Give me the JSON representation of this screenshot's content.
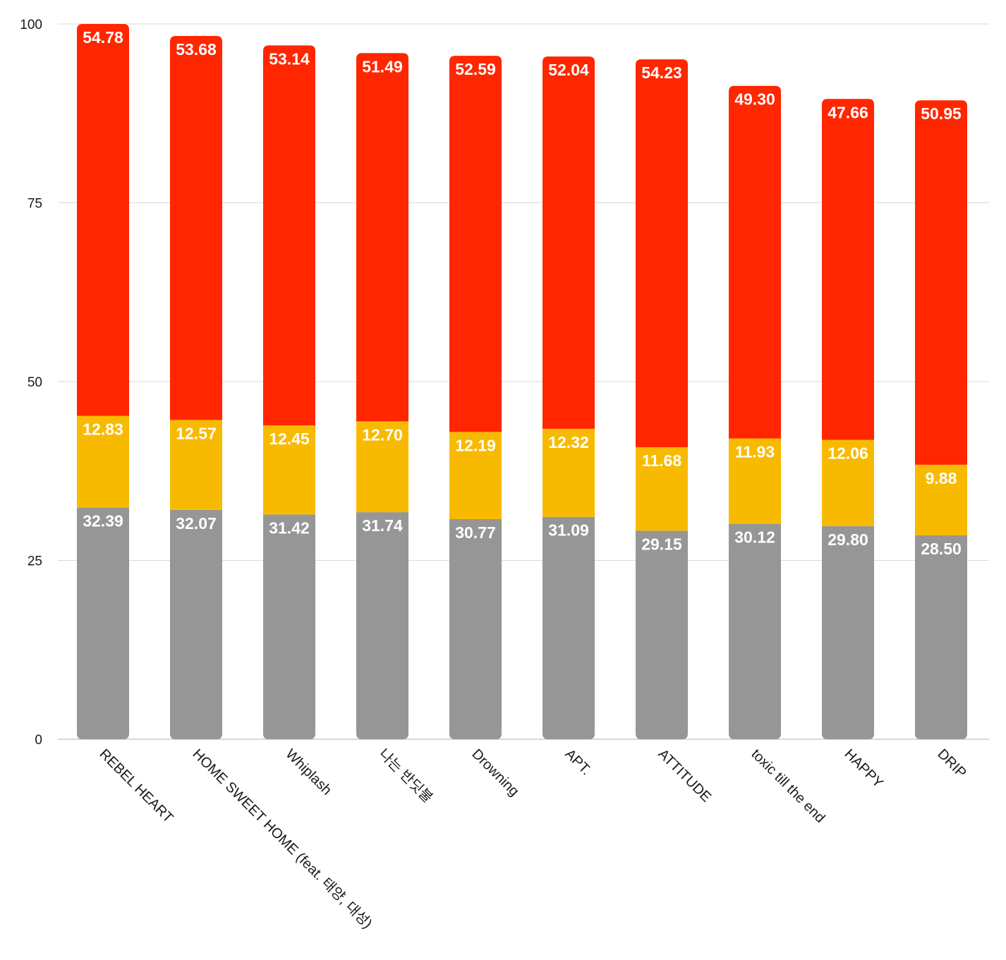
{
  "chart_data": {
    "type": "bar",
    "stacked": true,
    "title": "",
    "xlabel": "",
    "ylabel": "",
    "ylim": [
      0,
      100
    ],
    "yticks": [
      0,
      25,
      50,
      75,
      100
    ],
    "grid": true,
    "legend": "none",
    "categories": [
      "REBEL HEART",
      "HOME SWEET HOME (feat. 태양, 대성)",
      "Whiplash",
      "나는 반딧불",
      "Drowning",
      "APT.",
      "ATTITUDE",
      "toxic till the end",
      "HAPPY",
      "DRIP"
    ],
    "series": [
      {
        "color": "#969696",
        "values": [
          32.39,
          32.07,
          31.42,
          31.74,
          30.77,
          31.09,
          29.15,
          30.12,
          29.8,
          28.5
        ],
        "labels": [
          "32.39",
          "32.07",
          "31.42",
          "31.74",
          "30.77",
          "31.09",
          "29.15",
          "30.12",
          "29.80",
          "28.50"
        ]
      },
      {
        "color": "#f8ba00",
        "values": [
          12.83,
          12.57,
          12.45,
          12.7,
          12.19,
          12.32,
          11.68,
          11.93,
          12.06,
          9.88
        ],
        "labels": [
          "12.83",
          "12.57",
          "12.45",
          "12.70",
          "12.19",
          "12.32",
          "11.68",
          "11.93",
          "12.06",
          "9.88"
        ]
      },
      {
        "color": "#ff2600",
        "values": [
          54.78,
          53.68,
          53.14,
          51.49,
          52.59,
          52.04,
          54.23,
          49.3,
          47.66,
          50.95
        ],
        "labels": [
          "54.78",
          "53.68",
          "53.14",
          "51.49",
          "52.59",
          "52.04",
          "54.23",
          "49.30",
          "47.66",
          "50.95"
        ]
      }
    ]
  }
}
